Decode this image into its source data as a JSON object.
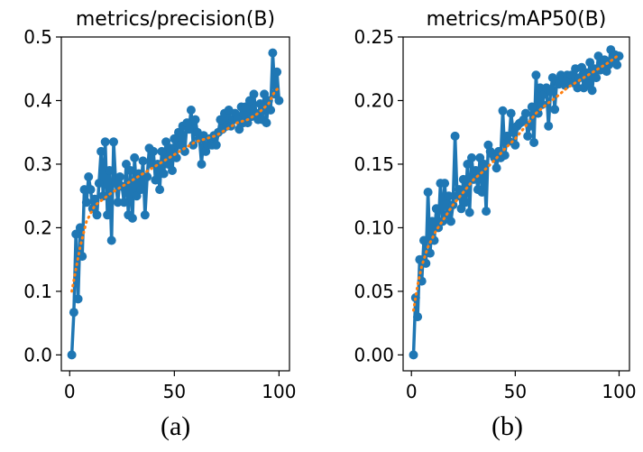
{
  "panel_labels": {
    "a": "(a)",
    "b": "(b)"
  },
  "colors": {
    "results": "#1f77b4",
    "smooth": "#ff7f0e",
    "axis": "#000000"
  },
  "chart_data": [
    {
      "type": "line",
      "title": "metrics/precision(B)",
      "xlabel": "",
      "ylabel": "",
      "xlim": [
        -4,
        105
      ],
      "ylim": [
        -0.025,
        0.5
      ],
      "xticks": [
        0,
        50,
        100
      ],
      "yticks": [
        0.0,
        0.1,
        0.2,
        0.3,
        0.4,
        0.5
      ],
      "ytick_labels": [
        "0.0",
        "0.1",
        "0.2",
        "0.3",
        "0.4",
        "0.5"
      ],
      "grid": false,
      "series": [
        {
          "style": "line-markers",
          "color": "#1f77b4",
          "x": [
            1,
            2,
            3,
            4,
            5,
            6,
            7,
            8,
            9,
            10,
            11,
            12,
            13,
            14,
            15,
            16,
            17,
            18,
            19,
            20,
            21,
            22,
            23,
            24,
            25,
            26,
            27,
            28,
            29,
            30,
            31,
            32,
            33,
            34,
            35,
            36,
            37,
            38,
            39,
            40,
            41,
            42,
            43,
            44,
            45,
            46,
            47,
            48,
            49,
            50,
            51,
            52,
            53,
            54,
            55,
            56,
            57,
            58,
            59,
            60,
            61,
            62,
            63,
            64,
            65,
            66,
            67,
            68,
            69,
            70,
            71,
            72,
            73,
            74,
            75,
            76,
            77,
            78,
            79,
            80,
            81,
            82,
            83,
            84,
            85,
            86,
            87,
            88,
            89,
            90,
            91,
            92,
            93,
            94,
            95,
            96,
            97,
            98,
            99,
            100
          ],
          "y": [
            0.0,
            0.067,
            0.19,
            0.088,
            0.2,
            0.155,
            0.26,
            0.24,
            0.28,
            0.26,
            0.23,
            0.245,
            0.22,
            0.27,
            0.32,
            0.25,
            0.335,
            0.22,
            0.29,
            0.18,
            0.335,
            0.27,
            0.24,
            0.28,
            0.265,
            0.24,
            0.3,
            0.22,
            0.29,
            0.215,
            0.31,
            0.25,
            0.285,
            0.26,
            0.305,
            0.22,
            0.28,
            0.325,
            0.3,
            0.32,
            0.275,
            0.3,
            0.26,
            0.32,
            0.285,
            0.335,
            0.3,
            0.325,
            0.29,
            0.34,
            0.31,
            0.35,
            0.33,
            0.36,
            0.32,
            0.365,
            0.355,
            0.385,
            0.33,
            0.37,
            0.35,
            0.34,
            0.3,
            0.345,
            0.32,
            0.33,
            0.34,
            0.33,
            0.345,
            0.33,
            0.35,
            0.37,
            0.355,
            0.38,
            0.36,
            0.385,
            0.36,
            0.37,
            0.38,
            0.37,
            0.355,
            0.39,
            0.365,
            0.39,
            0.365,
            0.4,
            0.375,
            0.41,
            0.38,
            0.37,
            0.395,
            0.37,
            0.41,
            0.365,
            0.4,
            0.385,
            0.475,
            0.41,
            0.445,
            0.4
          ]
        },
        {
          "style": "dotted",
          "color": "#ff7f0e",
          "x": [
            1,
            3,
            5,
            8,
            12,
            16,
            20,
            25,
            30,
            35,
            40,
            45,
            50,
            55,
            60,
            65,
            70,
            75,
            80,
            85,
            90,
            95,
            98,
            100
          ],
          "y": [
            0.1,
            0.135,
            0.17,
            0.21,
            0.235,
            0.245,
            0.255,
            0.265,
            0.275,
            0.285,
            0.295,
            0.305,
            0.315,
            0.325,
            0.335,
            0.34,
            0.345,
            0.355,
            0.365,
            0.37,
            0.38,
            0.395,
            0.415,
            0.42
          ]
        }
      ]
    },
    {
      "type": "line",
      "title": "metrics/mAP50(B)",
      "xlabel": "",
      "ylabel": "",
      "xlim": [
        -4,
        105
      ],
      "ylim": [
        -0.0125,
        0.25
      ],
      "xticks": [
        0,
        50,
        100
      ],
      "yticks": [
        0.0,
        0.05,
        0.1,
        0.15,
        0.2,
        0.25
      ],
      "ytick_labels": [
        "0.00",
        "0.05",
        "0.10",
        "0.15",
        "0.20",
        "0.25"
      ],
      "grid": false,
      "series": [
        {
          "style": "line-markers",
          "color": "#1f77b4",
          "x": [
            1,
            2,
            3,
            4,
            5,
            6,
            7,
            8,
            9,
            10,
            11,
            12,
            13,
            14,
            15,
            16,
            17,
            18,
            19,
            20,
            21,
            22,
            23,
            24,
            25,
            26,
            27,
            28,
            29,
            30,
            31,
            32,
            33,
            34,
            35,
            36,
            37,
            38,
            39,
            40,
            41,
            42,
            43,
            44,
            45,
            46,
            47,
            48,
            49,
            50,
            51,
            52,
            53,
            54,
            55,
            56,
            57,
            58,
            59,
            60,
            61,
            62,
            63,
            64,
            65,
            66,
            67,
            68,
            69,
            70,
            71,
            72,
            73,
            74,
            75,
            76,
            77,
            78,
            79,
            80,
            81,
            82,
            83,
            84,
            85,
            86,
            87,
            88,
            89,
            90,
            91,
            92,
            93,
            94,
            95,
            96,
            97,
            98,
            99,
            100
          ],
          "y": [
            0.0,
            0.045,
            0.03,
            0.075,
            0.058,
            0.09,
            0.072,
            0.128,
            0.08,
            0.105,
            0.09,
            0.115,
            0.1,
            0.135,
            0.105,
            0.135,
            0.11,
            0.125,
            0.105,
            0.118,
            0.172,
            0.125,
            0.13,
            0.115,
            0.138,
            0.12,
            0.15,
            0.112,
            0.155,
            0.138,
            0.145,
            0.13,
            0.155,
            0.128,
            0.15,
            0.113,
            0.165,
            0.16,
            0.158,
            0.155,
            0.147,
            0.16,
            0.155,
            0.192,
            0.157,
            0.172,
            0.168,
            0.19,
            0.175,
            0.165,
            0.18,
            0.182,
            0.183,
            0.185,
            0.19,
            0.172,
            0.18,
            0.195,
            0.167,
            0.22,
            0.19,
            0.21,
            0.197,
            0.205,
            0.21,
            0.18,
            0.207,
            0.218,
            0.193,
            0.215,
            0.213,
            0.22,
            0.218,
            0.212,
            0.22,
            0.215,
            0.22,
            0.214,
            0.225,
            0.21,
            0.218,
            0.226,
            0.21,
            0.222,
            0.213,
            0.23,
            0.208,
            0.225,
            0.218,
            0.235,
            0.224,
            0.228,
            0.232,
            0.223,
            0.228,
            0.24,
            0.23,
            0.236,
            0.228,
            0.235
          ]
        },
        {
          "style": "dotted",
          "color": "#ff7f0e",
          "x": [
            1,
            3,
            5,
            8,
            12,
            16,
            20,
            25,
            30,
            35,
            40,
            45,
            50,
            55,
            60,
            65,
            70,
            75,
            80,
            85,
            90,
            95,
            100
          ],
          "y": [
            0.035,
            0.055,
            0.07,
            0.085,
            0.098,
            0.108,
            0.118,
            0.128,
            0.138,
            0.145,
            0.153,
            0.162,
            0.17,
            0.18,
            0.19,
            0.197,
            0.203,
            0.21,
            0.215,
            0.22,
            0.225,
            0.23,
            0.236
          ]
        }
      ]
    }
  ]
}
